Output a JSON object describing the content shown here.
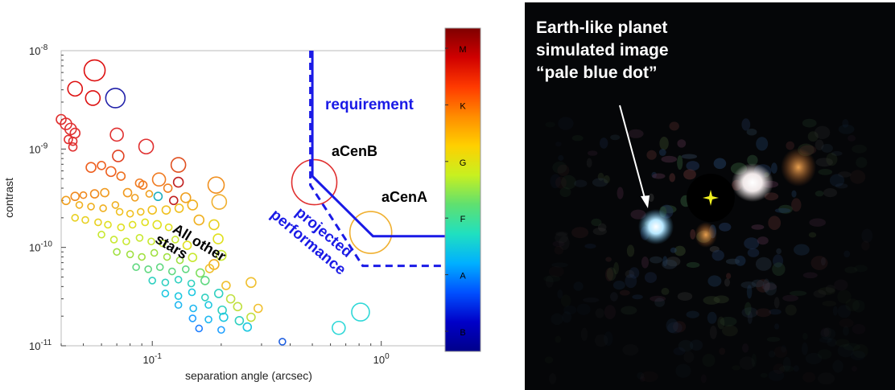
{
  "chart_data": {
    "type": "scatter",
    "xlabel": "separation angle (arcsec)",
    "ylabel": "contrast",
    "xscale": "log",
    "yscale": "log",
    "xlim": [
      0.04,
      1.9
    ],
    "ylim": [
      1e-11,
      1e-08
    ],
    "x_ticks": [
      {
        "value": 0.1,
        "base": "10",
        "exp": "-1"
      },
      {
        "value": 1,
        "base": "10",
        "exp": "0"
      }
    ],
    "y_ticks": [
      {
        "value": 1e-08,
        "base": "10",
        "exp": "-8"
      },
      {
        "value": 1e-09,
        "base": "10",
        "exp": "-9"
      },
      {
        "value": 1e-10,
        "base": "10",
        "exp": "-10"
      },
      {
        "value": 1e-11,
        "base": "10",
        "exp": "-11"
      }
    ],
    "colorbar": {
      "labels": [
        "M",
        "K",
        "G",
        "F",
        "A",
        "B"
      ],
      "colors": [
        "#7f0000",
        "#d00000",
        "#ff3a00",
        "#ff8c00",
        "#ffd000",
        "#c8f020",
        "#5fe070",
        "#20e0c0",
        "#00b0ff",
        "#0050ff",
        "#0000c8",
        "#00008a"
      ]
    },
    "stars": [
      {
        "x": 0.056,
        "y": 6.3e-09,
        "r": 13,
        "c": "#dd1010"
      },
      {
        "x": 0.046,
        "y": 4.1e-09,
        "r": 9,
        "c": "#dd1010"
      },
      {
        "x": 0.055,
        "y": 3.3e-09,
        "r": 9,
        "c": "#dd1010"
      },
      {
        "x": 0.069,
        "y": 3.3e-09,
        "r": 12,
        "c": "#2222aa"
      },
      {
        "x": 0.04,
        "y": 2e-09,
        "r": 6,
        "c": "#e03030"
      },
      {
        "x": 0.042,
        "y": 1.8e-09,
        "r": 7,
        "c": "#e03030"
      },
      {
        "x": 0.044,
        "y": 1.6e-09,
        "r": 7,
        "c": "#e03030"
      },
      {
        "x": 0.046,
        "y": 1.45e-09,
        "r": 6,
        "c": "#e03030"
      },
      {
        "x": 0.043,
        "y": 1.25e-09,
        "r": 5,
        "c": "#e03030"
      },
      {
        "x": 0.045,
        "y": 1.2e-09,
        "r": 5,
        "c": "#e03030"
      },
      {
        "x": 0.07,
        "y": 1.4e-09,
        "r": 8,
        "c": "#e03030"
      },
      {
        "x": 0.045,
        "y": 1.05e-09,
        "r": 5,
        "c": "#e03030"
      },
      {
        "x": 0.094,
        "y": 1.06e-09,
        "r": 9,
        "c": "#e03030"
      },
      {
        "x": 0.071,
        "y": 8.5e-10,
        "r": 7,
        "c": "#e04020"
      },
      {
        "x": 0.13,
        "y": 6.9e-10,
        "r": 9,
        "c": "#e05020"
      },
      {
        "x": 0.054,
        "y": 6.5e-10,
        "r": 6,
        "c": "#ee6020"
      },
      {
        "x": 0.06,
        "y": 6.8e-10,
        "r": 5,
        "c": "#ee6020"
      },
      {
        "x": 0.066,
        "y": 5.9e-10,
        "r": 6,
        "c": "#ee6020"
      },
      {
        "x": 0.073,
        "y": 5.3e-10,
        "r": 5,
        "c": "#ee7020"
      },
      {
        "x": 0.107,
        "y": 4.9e-10,
        "r": 8,
        "c": "#f07a20"
      },
      {
        "x": 0.088,
        "y": 4.5e-10,
        "r": 5,
        "c": "#f07a20"
      },
      {
        "x": 0.091,
        "y": 4.3e-10,
        "r": 5,
        "c": "#f07a20"
      },
      {
        "x": 0.13,
        "y": 4.6e-10,
        "r": 6,
        "c": "#c02020"
      },
      {
        "x": 0.117,
        "y": 4e-10,
        "r": 5,
        "c": "#f08020"
      },
      {
        "x": 0.19,
        "y": 4.3e-10,
        "r": 10,
        "c": "#f09020"
      },
      {
        "x": 0.046,
        "y": 3.3e-10,
        "r": 5,
        "c": "#f08a20"
      },
      {
        "x": 0.05,
        "y": 3.4e-10,
        "r": 4,
        "c": "#f08a20"
      },
      {
        "x": 0.056,
        "y": 3.5e-10,
        "r": 5,
        "c": "#f08a20"
      },
      {
        "x": 0.062,
        "y": 3.6e-10,
        "r": 5,
        "c": "#f09a20"
      },
      {
        "x": 0.078,
        "y": 3.6e-10,
        "r": 5,
        "c": "#f09a20"
      },
      {
        "x": 0.084,
        "y": 3.2e-10,
        "r": 4,
        "c": "#f0a020"
      },
      {
        "x": 0.097,
        "y": 3.5e-10,
        "r": 4,
        "c": "#f0a020"
      },
      {
        "x": 0.106,
        "y": 3.3e-10,
        "r": 5,
        "c": "#20b0c0"
      },
      {
        "x": 0.124,
        "y": 3e-10,
        "r": 5,
        "c": "#c02020"
      },
      {
        "x": 0.14,
        "y": 3.2e-10,
        "r": 6,
        "c": "#f0a020"
      },
      {
        "x": 0.196,
        "y": 2.9e-10,
        "r": 9,
        "c": "#f0b030"
      },
      {
        "x": 0.042,
        "y": 3e-10,
        "r": 5,
        "c": "#f0a020"
      },
      {
        "x": 0.048,
        "y": 2.7e-10,
        "r": 4,
        "c": "#f0b020"
      },
      {
        "x": 0.054,
        "y": 2.6e-10,
        "r": 4,
        "c": "#f0b020"
      },
      {
        "x": 0.061,
        "y": 2.5e-10,
        "r": 4,
        "c": "#f0b020"
      },
      {
        "x": 0.069,
        "y": 2.7e-10,
        "r": 4,
        "c": "#f0b020"
      },
      {
        "x": 0.072,
        "y": 2.3e-10,
        "r": 4,
        "c": "#f0c020"
      },
      {
        "x": 0.08,
        "y": 2.2e-10,
        "r": 4,
        "c": "#f0c020"
      },
      {
        "x": 0.089,
        "y": 2.3e-10,
        "r": 4,
        "c": "#f0c020"
      },
      {
        "x": 0.1,
        "y": 2.4e-10,
        "r": 5,
        "c": "#f0c020"
      },
      {
        "x": 0.115,
        "y": 2.4e-10,
        "r": 5,
        "c": "#f0c020"
      },
      {
        "x": 0.131,
        "y": 2.5e-10,
        "r": 5,
        "c": "#f0c020"
      },
      {
        "x": 0.15,
        "y": 2.7e-10,
        "r": 6,
        "c": "#f0b020"
      },
      {
        "x": 0.046,
        "y": 2e-10,
        "r": 4,
        "c": "#e8d020"
      },
      {
        "x": 0.051,
        "y": 1.9e-10,
        "r": 4,
        "c": "#e8d020"
      },
      {
        "x": 0.058,
        "y": 1.8e-10,
        "r": 4,
        "c": "#e8d020"
      },
      {
        "x": 0.064,
        "y": 1.7e-10,
        "r": 4,
        "c": "#e0e020"
      },
      {
        "x": 0.073,
        "y": 1.6e-10,
        "r": 4,
        "c": "#e0e020"
      },
      {
        "x": 0.082,
        "y": 1.7e-10,
        "r": 4,
        "c": "#e0e020"
      },
      {
        "x": 0.093,
        "y": 1.8e-10,
        "r": 4,
        "c": "#e0e020"
      },
      {
        "x": 0.105,
        "y": 1.7e-10,
        "r": 5,
        "c": "#e0e020"
      },
      {
        "x": 0.118,
        "y": 1.6e-10,
        "r": 4,
        "c": "#e0e020"
      },
      {
        "x": 0.16,
        "y": 1.9e-10,
        "r": 6,
        "c": "#f0b020"
      },
      {
        "x": 0.186,
        "y": 1.7e-10,
        "r": 6,
        "c": "#e8d020"
      },
      {
        "x": 0.06,
        "y": 1.35e-10,
        "r": 4,
        "c": "#c8e830"
      },
      {
        "x": 0.068,
        "y": 1.2e-10,
        "r": 4,
        "c": "#c8e830"
      },
      {
        "x": 0.077,
        "y": 1.15e-10,
        "r": 4,
        "c": "#c8e830"
      },
      {
        "x": 0.088,
        "y": 1.25e-10,
        "r": 4,
        "c": "#c8e830"
      },
      {
        "x": 0.099,
        "y": 1.15e-10,
        "r": 4,
        "c": "#c8e830"
      },
      {
        "x": 0.111,
        "y": 1.1e-10,
        "r": 4,
        "c": "#c8e830"
      },
      {
        "x": 0.126,
        "y": 1.2e-10,
        "r": 4,
        "c": "#c8e830"
      },
      {
        "x": 0.142,
        "y": 1.05e-10,
        "r": 5,
        "c": "#e0e020"
      },
      {
        "x": 0.194,
        "y": 1.22e-10,
        "r": 6,
        "c": "#e0e020"
      },
      {
        "x": 0.07,
        "y": 9e-11,
        "r": 4,
        "c": "#a0e040"
      },
      {
        "x": 0.08,
        "y": 8.5e-11,
        "r": 4,
        "c": "#a0e040"
      },
      {
        "x": 0.09,
        "y": 8e-11,
        "r": 4,
        "c": "#a0e040"
      },
      {
        "x": 0.102,
        "y": 8.8e-11,
        "r": 4,
        "c": "#a0e040"
      },
      {
        "x": 0.116,
        "y": 8e-11,
        "r": 4,
        "c": "#a0e040"
      },
      {
        "x": 0.132,
        "y": 7.4e-11,
        "r": 4,
        "c": "#a0e040"
      },
      {
        "x": 0.15,
        "y": 7.9e-11,
        "r": 5,
        "c": "#c8e830"
      },
      {
        "x": 0.2,
        "y": 8.3e-11,
        "r": 6,
        "c": "#c8e830"
      },
      {
        "x": 0.186,
        "y": 6.7e-11,
        "r": 6,
        "c": "#f0b020"
      },
      {
        "x": 0.085,
        "y": 6.3e-11,
        "r": 4,
        "c": "#60d880"
      },
      {
        "x": 0.096,
        "y": 6e-11,
        "r": 4,
        "c": "#60d880"
      },
      {
        "x": 0.108,
        "y": 6.3e-11,
        "r": 4,
        "c": "#60d880"
      },
      {
        "x": 0.122,
        "y": 5.7e-11,
        "r": 4,
        "c": "#60d880"
      },
      {
        "x": 0.14,
        "y": 6e-11,
        "r": 4,
        "c": "#60d880"
      },
      {
        "x": 0.162,
        "y": 5.5e-11,
        "r": 5,
        "c": "#80e060"
      },
      {
        "x": 0.178,
        "y": 6.1e-11,
        "r": 5,
        "c": "#f0c030"
      },
      {
        "x": 0.1,
        "y": 4.6e-11,
        "r": 4,
        "c": "#30d0c0"
      },
      {
        "x": 0.114,
        "y": 4.4e-11,
        "r": 4,
        "c": "#30d0c0"
      },
      {
        "x": 0.13,
        "y": 4.7e-11,
        "r": 4,
        "c": "#30d0c0"
      },
      {
        "x": 0.148,
        "y": 4.3e-11,
        "r": 4,
        "c": "#30d0c0"
      },
      {
        "x": 0.17,
        "y": 4.6e-11,
        "r": 5,
        "c": "#60d880"
      },
      {
        "x": 0.21,
        "y": 4.1e-11,
        "r": 5,
        "c": "#f0c030"
      },
      {
        "x": 0.27,
        "y": 4.4e-11,
        "r": 6,
        "c": "#f0c030"
      },
      {
        "x": 0.114,
        "y": 3.4e-11,
        "r": 4,
        "c": "#20c8e0"
      },
      {
        "x": 0.13,
        "y": 3.2e-11,
        "r": 4,
        "c": "#20c8e0"
      },
      {
        "x": 0.149,
        "y": 3.5e-11,
        "r": 4,
        "c": "#20c8e0"
      },
      {
        "x": 0.17,
        "y": 3.1e-11,
        "r": 4,
        "c": "#30d0c0"
      },
      {
        "x": 0.195,
        "y": 3.4e-11,
        "r": 5,
        "c": "#30d0c0"
      },
      {
        "x": 0.22,
        "y": 3e-11,
        "r": 5,
        "c": "#c0e040"
      },
      {
        "x": 0.13,
        "y": 2.6e-11,
        "r": 4,
        "c": "#20b8f0"
      },
      {
        "x": 0.151,
        "y": 2.4e-11,
        "r": 4,
        "c": "#20b8f0"
      },
      {
        "x": 0.176,
        "y": 2.6e-11,
        "r": 4,
        "c": "#20c8e0"
      },
      {
        "x": 0.202,
        "y": 2.3e-11,
        "r": 5,
        "c": "#30d0c0"
      },
      {
        "x": 0.236,
        "y": 2.5e-11,
        "r": 5,
        "c": "#c0e040"
      },
      {
        "x": 0.29,
        "y": 2.4e-11,
        "r": 5,
        "c": "#f0c030"
      },
      {
        "x": 0.15,
        "y": 1.9e-11,
        "r": 4,
        "c": "#20a0ff"
      },
      {
        "x": 0.176,
        "y": 1.85e-11,
        "r": 4,
        "c": "#20b8f0"
      },
      {
        "x": 0.205,
        "y": 1.95e-11,
        "r": 5,
        "c": "#20c8e0"
      },
      {
        "x": 0.24,
        "y": 1.8e-11,
        "r": 5,
        "c": "#30d0c0"
      },
      {
        "x": 0.27,
        "y": 1.95e-11,
        "r": 5,
        "c": "#c0e040"
      },
      {
        "x": 0.16,
        "y": 1.5e-11,
        "r": 4,
        "c": "#2080ff"
      },
      {
        "x": 0.2,
        "y": 1.45e-11,
        "r": 4,
        "c": "#20a0ff"
      },
      {
        "x": 0.26,
        "y": 1.55e-11,
        "r": 5,
        "c": "#20c8e0"
      },
      {
        "x": 0.37,
        "y": 1.1e-11,
        "r": 4,
        "c": "#2060e0"
      },
      {
        "x": 0.652,
        "y": 1.52e-11,
        "r": 8,
        "c": "#30d8d8"
      },
      {
        "x": 0.812,
        "y": 2.2e-11,
        "r": 11,
        "c": "#30d8d8"
      },
      {
        "x": 0.51,
        "y": 4.6e-10,
        "r": 28,
        "c": "#e03030"
      },
      {
        "x": 0.9,
        "y": 1.42e-10,
        "r": 26,
        "c": "#f0b030"
      }
    ],
    "requirement_curve": {
      "label": "requirement",
      "points": [
        [
          0.5,
          1e-08
        ],
        [
          0.5,
          5.3e-10
        ],
        [
          0.92,
          1.3e-10
        ],
        [
          1.9,
          1.3e-10
        ]
      ]
    },
    "projected_curve": {
      "label": "projected performance",
      "points": [
        [
          0.49,
          1e-08
        ],
        [
          0.49,
          4.3e-10
        ],
        [
          0.83,
          6.5e-11
        ],
        [
          1.9,
          6.5e-11
        ]
      ]
    },
    "annotations": {
      "acenb": "aCenB",
      "acena": "aCenA",
      "all_other": "All other",
      "stars": "stars",
      "projected_line1": "projected",
      "projected_line2": "performance"
    }
  },
  "sim_image": {
    "label_lines": [
      "Earth-like planet",
      "simulated image",
      "“pale blue dot”"
    ]
  }
}
